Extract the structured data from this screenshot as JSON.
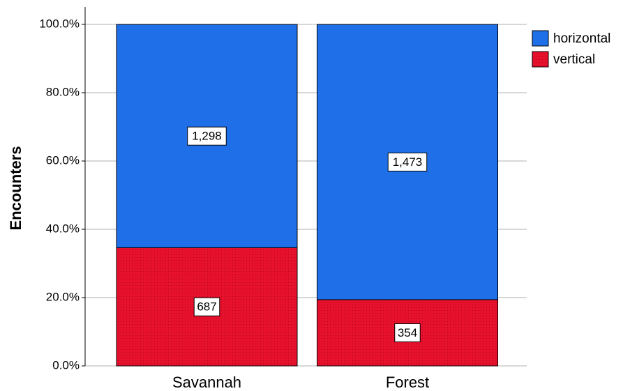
{
  "chart_data": {
    "type": "stacked_bar_percent",
    "y_label": "Encounters",
    "categories": [
      "Savannah",
      "Forest"
    ],
    "series": [
      {
        "name": "horizontal",
        "color": "#1f6fe8",
        "values": [
          65.4,
          80.6
        ],
        "count_labels": [
          "1,298",
          "1,473"
        ]
      },
      {
        "name": "vertical",
        "color": "#e8112d",
        "values": [
          34.6,
          19.4
        ],
        "count_labels": [
          "687",
          "354"
        ]
      }
    ],
    "ylim": [
      0,
      100
    ],
    "yticks": [
      {
        "value": 0,
        "label": "0.0%"
      },
      {
        "value": 20,
        "label": "20.0%"
      },
      {
        "value": 40,
        "label": "40.0%"
      },
      {
        "value": 60,
        "label": "60.0%"
      },
      {
        "value": 80,
        "label": "80.0%"
      },
      {
        "value": 100,
        "label": "100.0%"
      }
    ],
    "grid": true,
    "legend": "top-right"
  }
}
